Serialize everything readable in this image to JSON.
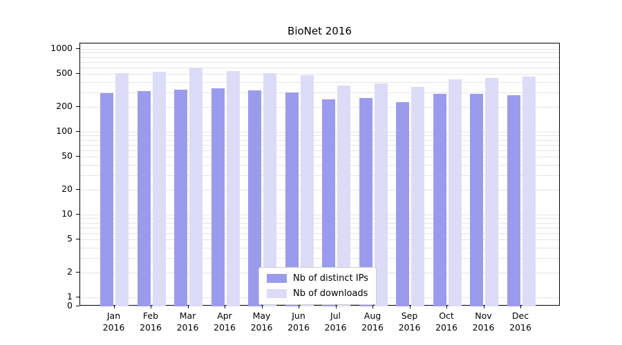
{
  "title": "BioNet 2016",
  "chart_data": {
    "type": "bar",
    "title": "BioNet 2016",
    "yscale": "log (symlog, axis includes 0)",
    "grid": true,
    "grid_color": "#e4e4e4",
    "legend_position": "lower center inside plot",
    "yticks": [
      1000,
      500,
      200,
      100,
      50,
      20,
      10,
      5,
      2,
      1,
      0
    ],
    "ylim": [
      0,
      1200
    ],
    "categories": [
      "Jan 2016",
      "Feb 2016",
      "Mar 2016",
      "Apr 2016",
      "May 2016",
      "Jun 2016",
      "Jul 2016",
      "Aug 2016",
      "Sep 2016",
      "Oct 2016",
      "Nov 2016",
      "Dec 2016"
    ],
    "series": [
      {
        "name": "Nb of distinct IPs",
        "color": "#9b9bee",
        "values": [
          295,
          310,
          325,
          335,
          315,
          300,
          245,
          255,
          230,
          285,
          285,
          275
        ]
      },
      {
        "name": "Nb of downloads",
        "color": "#dcdcf8",
        "values": [
          510,
          530,
          590,
          545,
          515,
          485,
          360,
          385,
          345,
          430,
          450,
          465
        ]
      }
    ]
  }
}
